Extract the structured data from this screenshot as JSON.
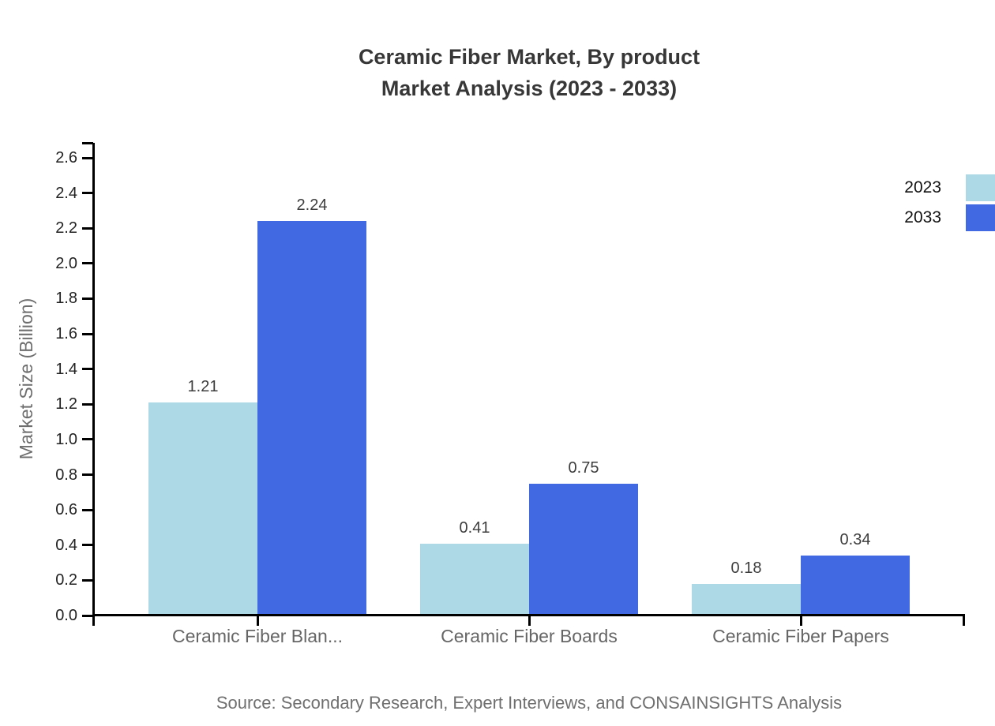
{
  "title": {
    "line1": "Ceramic Fiber Market, By product",
    "line2": "Market Analysis (2023 - 2033)"
  },
  "chart_data": {
    "type": "bar",
    "title": "Ceramic Fiber Market, By product Market Analysis (2023 - 2033)",
    "categories": [
      "Ceramic Fiber Blan...",
      "Ceramic Fiber Boards",
      "Ceramic Fiber Papers"
    ],
    "series": [
      {
        "name": "2023",
        "color": "#ADD8E6",
        "values": [
          1.21,
          0.41,
          0.18
        ]
      },
      {
        "name": "2033",
        "color": "#4169E1",
        "values": [
          2.24,
          0.75,
          0.34
        ]
      }
    ],
    "ylabel": "Market Size (Billion)",
    "ylim": [
      0,
      2.6
    ],
    "ytick_step": 0.2,
    "grid": false,
    "legend_position": "top-right",
    "value_labels": [
      "1.21",
      "2.24",
      "0.41",
      "0.75",
      "0.18",
      "0.34"
    ]
  },
  "source": {
    "text": "Source: Secondary Research, Expert Interviews, and CONSAINSIGHTS Analysis"
  },
  "colors": {
    "series_2023": "#ADD8E6",
    "series_2033": "#4169E1",
    "axis": "#000000",
    "title_text": "#373737",
    "tick_label_text": "#222222",
    "category_label_text": "#666666",
    "value_label_text": "#3d3d3d",
    "y_axis_title_text": "#6e6e6e",
    "legend_text": "#111111",
    "source_text": "#6f6f6f",
    "background": "#ffffff"
  }
}
